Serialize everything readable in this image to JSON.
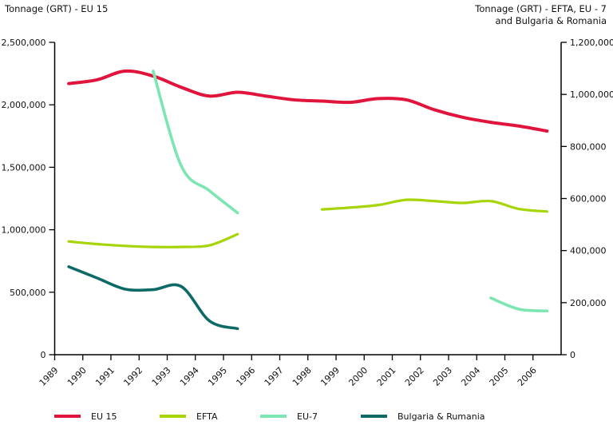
{
  "chart_data": {
    "type": "line",
    "title": "",
    "left_axis": {
      "title": "Tonnage (GRT) - EU 15",
      "range": [
        0,
        2500000
      ],
      "tick_values": [
        0,
        500000,
        1000000,
        1500000,
        2000000,
        2500000
      ],
      "tick_labels": [
        "0",
        "500,000",
        "1,000,000",
        "1,500,000",
        "2,000,000",
        "2,500,000"
      ]
    },
    "right_axis": {
      "title_line1": "Tonnage (GRT) - EFTA, EU - 7",
      "title_line2": "and Bulgaria & Romania",
      "range": [
        0,
        1200000
      ],
      "tick_values": [
        0,
        200000,
        400000,
        600000,
        800000,
        1000000,
        1200000
      ],
      "tick_labels": [
        "0",
        "200,000",
        "400,000",
        "600,000",
        "800,000",
        "1,000,000",
        "1,200,000"
      ]
    },
    "x_axis": {
      "years": [
        "1989",
        "1990",
        "1991",
        "1992",
        "1993",
        "1994",
        "1995",
        "1996",
        "1997",
        "1998",
        "1999",
        "2000",
        "2001",
        "2002",
        "2003",
        "2004",
        "2005",
        "2006"
      ]
    },
    "grid": "off",
    "legend_position": "bottom",
    "series": [
      {
        "name": "EU 15",
        "axis": "left",
        "color": "#e0143c",
        "stroke_width": 4,
        "segments": [
          {
            "years": [
              1989,
              1990,
              1991,
              1992,
              1993,
              1994,
              1995,
              1996,
              1997,
              1998,
              1999,
              2000,
              2001,
              2002,
              2003,
              2004,
              2005,
              2006
            ],
            "values": [
              2170000,
              2200000,
              2270000,
              2230000,
              2140000,
              2070000,
              2100000,
              2070000,
              2040000,
              2030000,
              2020000,
              2050000,
              2040000,
              1960000,
              1900000,
              1860000,
              1830000,
              1790000
            ]
          }
        ]
      },
      {
        "name": "EFTA",
        "axis": "right",
        "color": "#a6d50a",
        "stroke_width": 3.2,
        "segments": [
          {
            "years": [
              1989,
              1990,
              1991,
              1992,
              1993,
              1994,
              1995
            ],
            "values": [
              435000,
              425000,
              418000,
              414000,
              414000,
              420000,
              463000
            ]
          },
          {
            "years": [
              1998,
              1999,
              2000,
              2001,
              2002,
              2003,
              2004,
              2005,
              2006
            ],
            "values": [
              558000,
              565000,
              575000,
              595000,
              590000,
              583000,
              590000,
              560000,
              550000
            ]
          }
        ]
      },
      {
        "name": "EU-7",
        "axis": "right",
        "color": "#7ce6b3",
        "stroke_width": 3.6,
        "segments": [
          {
            "years": [
              1992,
              1993,
              1994,
              1995
            ],
            "values": [
              1090000,
              725000,
              630000,
              545000
            ]
          },
          {
            "years": [
              2004,
              2005,
              2006
            ],
            "values": [
              218000,
              175000,
              168000
            ]
          }
        ]
      },
      {
        "name": "Bulgaria & Rumania",
        "axis": "right",
        "color": "#0e6a66",
        "stroke_width": 3.6,
        "segments": [
          {
            "years": [
              1989,
              1990,
              1991,
              1992,
              1993,
              1994,
              1995
            ],
            "values": [
              338000,
              295000,
              252000,
              250000,
              262000,
              130000,
              100000
            ]
          }
        ]
      }
    ],
    "legend": [
      {
        "label": "EU 15",
        "color": "#e0143c"
      },
      {
        "label": "EFTA",
        "color": "#a6d50a"
      },
      {
        "label": "EU-7",
        "color": "#7ce6b3"
      },
      {
        "label": "Bulgaria & Rumania",
        "color": "#0e6a66"
      }
    ]
  }
}
